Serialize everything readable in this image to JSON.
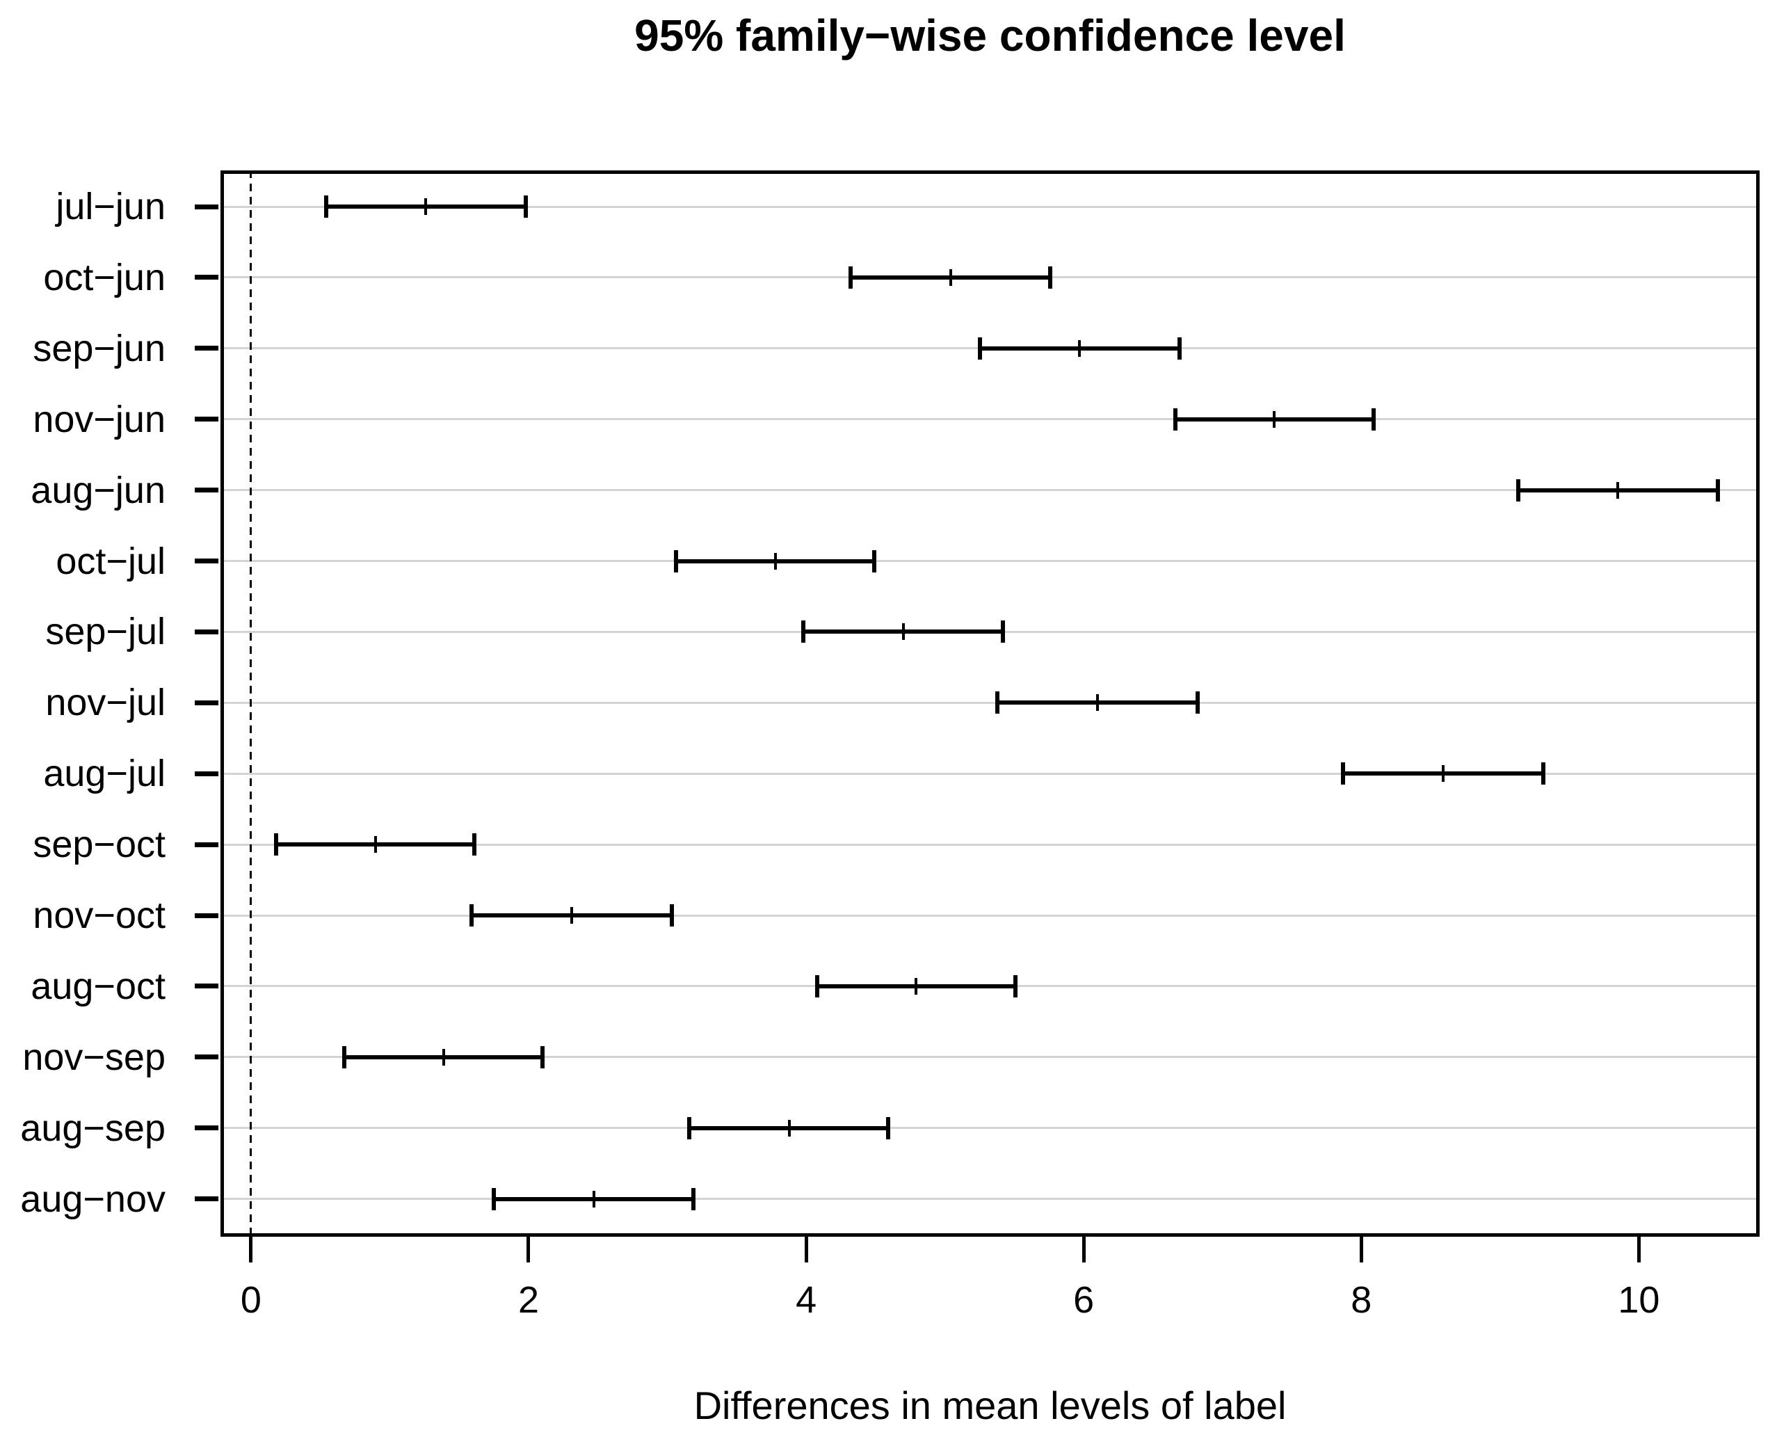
{
  "chart_data": {
    "type": "interval",
    "chart_kind": "Tukey HSD family-wise confidence interval plot",
    "title": "95% family−wise confidence level",
    "xlabel": "Differences in mean levels of label",
    "x_ticks": [
      0,
      2,
      4,
      6,
      8,
      10
    ],
    "xlim": [
      -0.22,
      10.87
    ],
    "reference_line_x": 0,
    "grid": "horizontal",
    "legend": "none",
    "comparisons": [
      {
        "label": "jul−jun",
        "lower": 0.54,
        "estimate": 1.26,
        "upper": 1.98
      },
      {
        "label": "oct−jun",
        "lower": 4.32,
        "estimate": 5.04,
        "upper": 5.76
      },
      {
        "label": "sep−jun",
        "lower": 5.25,
        "estimate": 5.97,
        "upper": 6.69
      },
      {
        "label": "nov−jun",
        "lower": 6.66,
        "estimate": 7.37,
        "upper": 8.09
      },
      {
        "label": "aug−jun",
        "lower": 9.13,
        "estimate": 9.85,
        "upper": 10.57
      },
      {
        "label": "oct−jul",
        "lower": 3.06,
        "estimate": 3.78,
        "upper": 4.49
      },
      {
        "label": "sep−jul",
        "lower": 3.98,
        "estimate": 4.7,
        "upper": 5.42
      },
      {
        "label": "nov−jul",
        "lower": 5.38,
        "estimate": 6.1,
        "upper": 6.82
      },
      {
        "label": "aug−jul",
        "lower": 7.87,
        "estimate": 8.59,
        "upper": 9.31
      },
      {
        "label": "sep−oct",
        "lower": 0.18,
        "estimate": 0.9,
        "upper": 1.61
      },
      {
        "label": "nov−oct",
        "lower": 1.59,
        "estimate": 2.31,
        "upper": 3.03
      },
      {
        "label": "aug−oct",
        "lower": 4.08,
        "estimate": 4.79,
        "upper": 5.51
      },
      {
        "label": "nov−sep",
        "lower": 0.67,
        "estimate": 1.39,
        "upper": 2.1
      },
      {
        "label": "aug−sep",
        "lower": 3.16,
        "estimate": 3.88,
        "upper": 4.59
      },
      {
        "label": "aug−nov",
        "lower": 1.75,
        "estimate": 2.47,
        "upper": 3.19
      }
    ],
    "colors": {
      "line": "#000000",
      "grid": "#d3d3d3",
      "reference_line": "#000000",
      "background": "#ffffff"
    }
  }
}
